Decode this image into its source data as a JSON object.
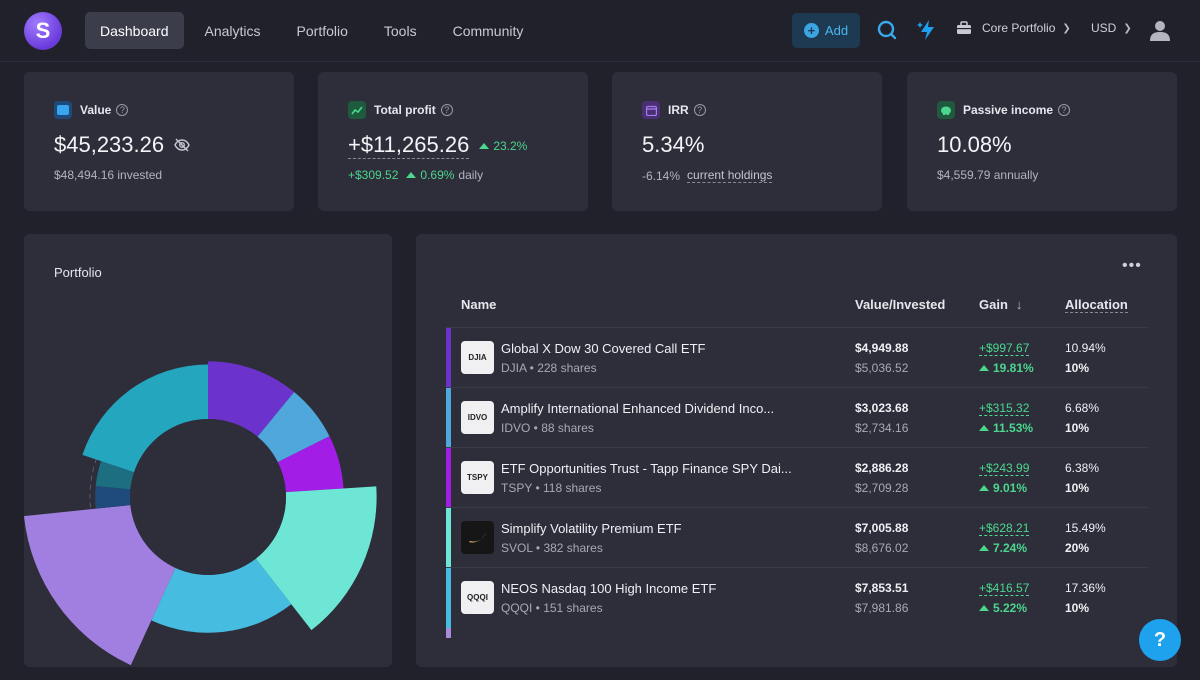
{
  "app": {
    "logo_letter": "S"
  },
  "nav": {
    "items": [
      {
        "label": "Dashboard",
        "active": true
      },
      {
        "label": "Analytics",
        "active": false
      },
      {
        "label": "Portfolio",
        "active": false
      },
      {
        "label": "Tools",
        "active": false
      },
      {
        "label": "Community",
        "active": false
      }
    ],
    "add_label": "Add",
    "portfolio_name": "Core Portfolio",
    "currency": "USD"
  },
  "stats": {
    "value": {
      "label": "Value",
      "amount": "$45,233.26",
      "sub": "$48,494.16 invested"
    },
    "profit": {
      "label": "Total profit",
      "amount": "+$11,265.26",
      "pct": "23.2%",
      "daily_amount": "+$309.52",
      "daily_pct": "0.69%",
      "daily_suffix": "daily"
    },
    "irr": {
      "label": "IRR",
      "amount": "5.34%",
      "sub_value": "-6.14%",
      "sub_label": "current holdings"
    },
    "passive": {
      "label": "Passive income",
      "amount": "10.08%",
      "sub": "$4,559.79 annually"
    }
  },
  "portfolio_chart": {
    "title": "Portfolio",
    "segments": [
      {
        "ticker": "DJIA",
        "allocation": 10.94,
        "target": 10,
        "color": "#6b32cc"
      },
      {
        "ticker": "IDVO",
        "allocation": 6.68,
        "target": 10,
        "color": "#4fa7dc"
      },
      {
        "ticker": "TSPY",
        "allocation": 6.38,
        "target": 10,
        "color": "#a21ee6"
      },
      {
        "ticker": "SVOL",
        "allocation": 15.49,
        "target": 20,
        "color": "#6ee6d6"
      },
      {
        "ticker": "QQQI",
        "allocation": 17.36,
        "target": 10,
        "color": "#46bde0"
      },
      {
        "ticker": "",
        "allocation": 16.5,
        "target": 25,
        "color": "#a17fe0"
      },
      {
        "ticker": "",
        "allocation": 3.2,
        "target": 3,
        "color": "#1f4a7c"
      },
      {
        "ticker": "",
        "allocation": 3.6,
        "target": 3,
        "color": "#1c6e80"
      },
      {
        "ticker": "",
        "allocation": 19.85,
        "target": 9,
        "color": "#25a6bf"
      }
    ]
  },
  "table": {
    "headers": {
      "name": "Name",
      "value": "Value/Invested",
      "gain": "Gain",
      "allocation": "Allocation"
    },
    "sort_icon": "arrow-down",
    "rows": [
      {
        "ticker": "DJIA",
        "name": "Global X Dow 30 Covered Call ETF",
        "shares": "DJIA • 228 shares",
        "value": "$4,949.88",
        "invested": "$5,036.52",
        "gain": "+$997.67",
        "gain_pct": "19.81%",
        "allocation": "10.94%",
        "target": "10%",
        "color": "#6b32cc",
        "logo": "text"
      },
      {
        "ticker": "IDVO",
        "name": "Amplify International Enhanced Dividend Inco...",
        "shares": "IDVO • 88 shares",
        "value": "$3,023.68",
        "invested": "$2,734.16",
        "gain": "+$315.32",
        "gain_pct": "11.53%",
        "allocation": "6.68%",
        "target": "10%",
        "color": "#4fa7dc",
        "logo": "text"
      },
      {
        "ticker": "TSPY",
        "name": "ETF Opportunities Trust - Tapp Finance SPY Dai...",
        "shares": "TSPY • 118 shares",
        "value": "$2,886.28",
        "invested": "$2,709.28",
        "gain": "+$243.99",
        "gain_pct": "9.01%",
        "allocation": "6.38%",
        "target": "10%",
        "color": "#a21ee6",
        "logo": "text"
      },
      {
        "ticker": "SVOL",
        "name": "Simplify Volatility Premium ETF",
        "shares": "SVOL • 382 shares",
        "value": "$7,005.88",
        "invested": "$8,676.02",
        "gain": "+$628.21",
        "gain_pct": "7.24%",
        "allocation": "15.49%",
        "target": "20%",
        "color": "#6ee6d6",
        "logo": "simplify-logo"
      },
      {
        "ticker": "QQQI",
        "name": "NEOS Nasdaq 100 High Income ETF",
        "shares": "QQQI • 151 shares",
        "value": "$7,853.51",
        "invested": "$7,981.86",
        "gain": "+$416.57",
        "gain_pct": "5.22%",
        "allocation": "17.36%",
        "target": "10%",
        "color": "#46bde0",
        "logo": "text"
      }
    ]
  },
  "help_fab": "?"
}
